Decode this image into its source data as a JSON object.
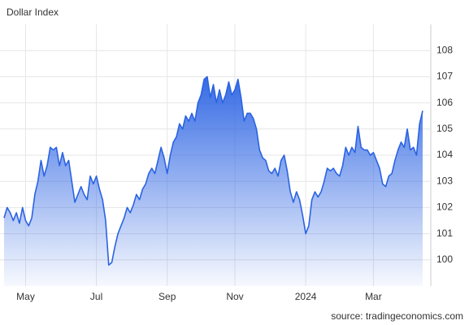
{
  "chart_data": {
    "type": "area",
    "title": "Dollar Index",
    "source": "source: tradingeconomics.com",
    "categories": [
      null,
      null,
      null,
      null,
      null,
      null,
      null,
      "May",
      null,
      null,
      null,
      null,
      null,
      null,
      null,
      null,
      null,
      null,
      null,
      null,
      null,
      null,
      null,
      null,
      null,
      null,
      null,
      null,
      null,
      null,
      "Jul",
      null,
      null,
      null,
      null,
      null,
      null,
      null,
      null,
      null,
      null,
      null,
      null,
      null,
      null,
      null,
      null,
      null,
      null,
      null,
      null,
      null,
      null,
      "Sep",
      null,
      null,
      null,
      null,
      null,
      null,
      null,
      null,
      null,
      null,
      null,
      null,
      null,
      null,
      null,
      null,
      null,
      null,
      null,
      null,
      null,
      "Nov",
      null,
      null,
      null,
      null,
      null,
      null,
      null,
      null,
      null,
      null,
      null,
      null,
      null,
      null,
      null,
      null,
      null,
      null,
      null,
      null,
      null,
      null,
      "2024",
      null,
      null,
      null,
      null,
      null,
      null,
      null,
      null,
      null,
      null,
      null,
      null,
      null,
      null,
      null,
      null,
      null,
      null,
      null,
      null,
      null,
      "Mar",
      null,
      null,
      null,
      null,
      null,
      null,
      null,
      null,
      null,
      null,
      null,
      null,
      null,
      null,
      null,
      null
    ],
    "values": [
      101.6,
      102.0,
      101.8,
      101.5,
      101.8,
      101.4,
      102.0,
      101.5,
      101.3,
      101.6,
      102.5,
      103.0,
      103.8,
      103.2,
      103.6,
      104.3,
      104.2,
      104.3,
      103.6,
      104.1,
      103.6,
      103.8,
      103.0,
      102.2,
      102.5,
      102.8,
      102.5,
      102.3,
      103.2,
      102.9,
      103.2,
      102.7,
      102.3,
      101.5,
      99.8,
      99.9,
      100.5,
      101.0,
      101.3,
      101.6,
      102.0,
      101.8,
      102.1,
      102.5,
      102.3,
      102.7,
      102.9,
      103.3,
      103.5,
      103.3,
      103.8,
      104.3,
      103.9,
      103.3,
      104.0,
      104.5,
      104.7,
      105.2,
      105.0,
      105.5,
      105.3,
      105.6,
      105.3,
      106.0,
      106.3,
      106.9,
      107.0,
      106.2,
      106.7,
      106.0,
      106.5,
      106.0,
      106.3,
      106.8,
      106.3,
      106.5,
      106.9,
      106.2,
      105.3,
      105.6,
      105.6,
      105.4,
      105.0,
      104.2,
      103.9,
      103.8,
      103.4,
      103.3,
      103.5,
      103.2,
      103.8,
      104.0,
      103.4,
      102.6,
      102.2,
      102.6,
      102.3,
      101.7,
      101.0,
      101.3,
      102.3,
      102.6,
      102.4,
      102.6,
      103.0,
      103.5,
      103.4,
      103.5,
      103.3,
      103.2,
      103.6,
      104.3,
      104.0,
      104.3,
      104.1,
      105.1,
      104.3,
      104.2,
      104.2,
      104.0,
      104.1,
      103.8,
      103.5,
      102.9,
      102.8,
      103.2,
      103.3,
      103.8,
      104.2,
      104.5,
      104.3,
      105.0,
      104.2,
      104.3,
      104.0,
      105.2,
      105.7
    ],
    "color": "#2b63e3",
    "ylim": [
      99,
      109
    ],
    "yticks": [
      100,
      101,
      102,
      103,
      104,
      105,
      106,
      107,
      108
    ],
    "grid": true
  }
}
